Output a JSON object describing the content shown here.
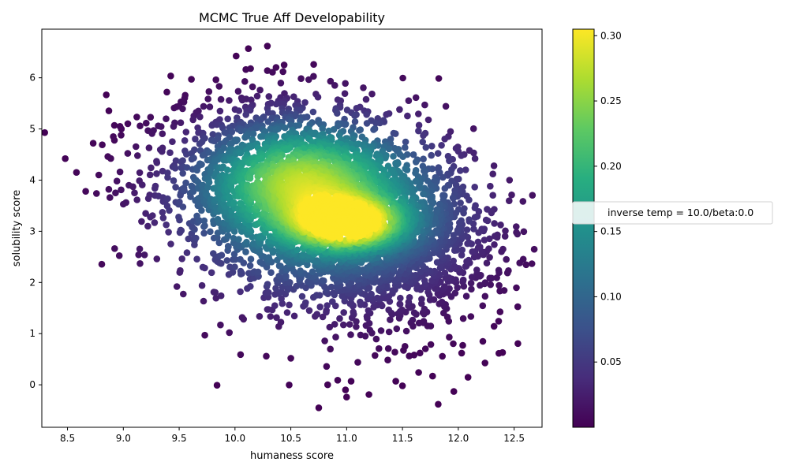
{
  "chart_data": {
    "type": "scatter",
    "title": "MCMC True Aff Developability",
    "xlabel": "humaness score",
    "ylabel": "solubility score",
    "xlim": [
      8.27,
      12.75
    ],
    "ylim": [
      -0.83,
      6.95
    ],
    "xticks": [
      "8.5",
      "9.0",
      "9.5",
      "10.0",
      "10.5",
      "11.0",
      "11.5",
      "12.0",
      "12.5"
    ],
    "yticks": [
      "0",
      "1",
      "2",
      "3",
      "4",
      "5",
      "6"
    ],
    "color_by": "density",
    "colormap": "viridis",
    "colorbar": {
      "range": [
        0.0,
        0.305
      ],
      "ticks": [
        "0.05",
        "0.10",
        "0.15",
        "0.20",
        "0.25",
        "0.30"
      ]
    },
    "legend": {
      "label": "inverse temp = 10.0/beta:0.0",
      "placement": "right outside"
    },
    "density_model": {
      "components": [
        {
          "cx": 11.02,
          "cy": 3.15,
          "sx": 0.32,
          "sy": 0.32,
          "w": 0.22
        },
        {
          "cx": 10.55,
          "cy": 4.05,
          "sx": 0.55,
          "sy": 0.7,
          "w": 0.16
        },
        {
          "cx": 10.9,
          "cy": 3.45,
          "sx": 0.8,
          "sy": 1.05,
          "w": 0.1
        },
        {
          "cx": 10.7,
          "cy": 3.2,
          "sx": 0.95,
          "sy": 1.3,
          "w": 0.045
        }
      ]
    },
    "outlier_points": [
      [
        8.48,
        4.42
      ],
      [
        8.58,
        4.15
      ],
      [
        8.73,
        4.72
      ],
      [
        8.76,
        3.74
      ],
      [
        8.78,
        4.1
      ],
      [
        8.87,
        3.82
      ],
      [
        8.88,
        3.66
      ],
      [
        8.91,
        4.85
      ],
      [
        8.92,
        4.78
      ],
      [
        8.93,
        3.75
      ],
      [
        8.92,
        5.07
      ],
      [
        8.97,
        5.05
      ],
      [
        8.98,
        4.88
      ],
      [
        8.97,
        4.16
      ],
      [
        9.0,
        3.53
      ],
      [
        9.05,
        3.9
      ],
      [
        9.1,
        3.75
      ],
      [
        9.15,
        5.06
      ],
      [
        9.15,
        2.37
      ],
      [
        9.2,
        3.35
      ],
      [
        9.22,
        3.1
      ],
      [
        9.23,
        4.63
      ],
      [
        9.3,
        2.46
      ],
      [
        9.46,
        5.12
      ],
      [
        9.48,
        1.92
      ],
      [
        9.39,
        5.72
      ],
      [
        9.61,
        5.97
      ],
      [
        9.73,
        0.97
      ],
      [
        9.87,
        1.17
      ],
      [
        9.95,
        1.02
      ],
      [
        10.05,
        0.59
      ],
      [
        10.12,
        6.57
      ],
      [
        10.14,
        6.18
      ],
      [
        10.29,
        6.62
      ],
      [
        10.29,
        6.14
      ],
      [
        10.44,
        6.25
      ],
      [
        10.43,
        6.12
      ],
      [
        10.28,
        0.56
      ],
      [
        10.5,
        0.52
      ],
      [
        10.75,
        -0.45
      ],
      [
        10.82,
        0.36
      ],
      [
        10.83,
        0.0
      ],
      [
        10.92,
        0.09
      ],
      [
        10.99,
        -0.1
      ],
      [
        11.0,
        -0.24
      ],
      [
        11.04,
        0.07
      ],
      [
        11.2,
        -0.19
      ],
      [
        11.1,
        0.44
      ],
      [
        11.44,
        0.07
      ],
      [
        11.5,
        -0.02
      ],
      [
        11.77,
        0.17
      ],
      [
        11.82,
        -0.38
      ],
      [
        11.96,
        -0.13
      ],
      [
        12.03,
        0.62
      ],
      [
        12.04,
        0.77
      ],
      [
        12.22,
        0.85
      ],
      [
        12.32,
        4.28
      ],
      [
        12.31,
        4.12
      ],
      [
        12.55,
        2.38
      ],
      [
        12.4,
        2.65
      ],
      [
        12.43,
        2.45
      ],
      [
        11.7,
        5.47
      ],
      [
        11.93,
        4.95
      ],
      [
        12.1,
        4.58
      ],
      [
        12.25,
        3.22
      ],
      [
        11.85,
        4.68
      ],
      [
        12.15,
        4.42
      ],
      [
        11.98,
        4.62
      ],
      [
        12.35,
        2.93
      ]
    ]
  }
}
